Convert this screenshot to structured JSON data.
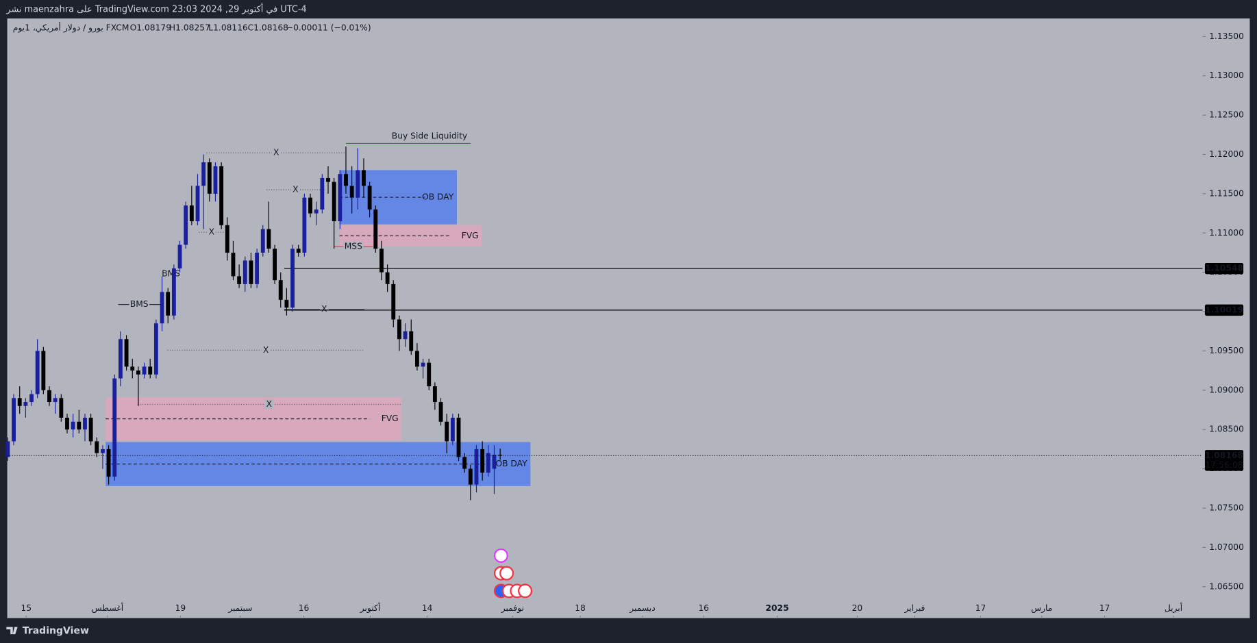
{
  "chart_data": {
    "type": "candlestick",
    "header": "نشر maenzahra على TradingView.com 23:03 2024 ,29 في أكتوبر UTC-4",
    "legend": {
      "symbol": "يورو / دولار أمريكي، 1يوم  FXCM",
      "open": "O1.08179",
      "high": "H1.08257",
      "low": "L1.08116",
      "close": "C1.08168",
      "change": "−0.00011 (−0.01%)"
    },
    "brand": "TradingView",
    "colors": {
      "up": "#1a1f9c",
      "down": "#000000"
    },
    "candles": [
      [
        1.0815,
        1.084,
        1.081,
        1.0835
      ],
      [
        1.0835,
        1.0895,
        1.083,
        1.089
      ],
      [
        1.089,
        1.0905,
        1.087,
        1.088
      ],
      [
        1.088,
        1.089,
        1.0865,
        1.0885
      ],
      [
        1.0885,
        1.09,
        1.088,
        1.0895
      ],
      [
        1.0895,
        1.0965,
        1.089,
        1.095
      ],
      [
        1.095,
        1.0955,
        1.0895,
        1.09
      ],
      [
        1.09,
        1.0905,
        1.088,
        1.0885
      ],
      [
        1.0885,
        1.0895,
        1.087,
        1.089
      ],
      [
        1.089,
        1.0895,
        1.086,
        1.0865
      ],
      [
        1.0865,
        1.087,
        1.0845,
        1.085
      ],
      [
        1.085,
        1.087,
        1.084,
        1.086
      ],
      [
        1.086,
        1.0875,
        1.0845,
        1.085
      ],
      [
        1.085,
        1.087,
        1.0835,
        1.0865
      ],
      [
        1.0865,
        1.087,
        1.083,
        1.0835
      ],
      [
        1.0835,
        1.084,
        1.0815,
        1.082
      ],
      [
        1.082,
        1.083,
        1.08,
        1.0825
      ],
      [
        1.0825,
        1.083,
        1.078,
        1.079
      ],
      [
        1.079,
        1.092,
        1.0785,
        1.0915
      ],
      [
        1.0915,
        1.0975,
        1.0905,
        1.0965
      ],
      [
        1.0965,
        1.097,
        1.0925,
        1.093
      ],
      [
        1.093,
        1.094,
        1.0915,
        1.0925
      ],
      [
        1.0925,
        1.093,
        1.088,
        1.092
      ],
      [
        1.092,
        1.0935,
        1.0915,
        1.093
      ],
      [
        1.093,
        1.094,
        1.0915,
        1.092
      ],
      [
        1.092,
        1.099,
        1.0915,
        1.0985
      ],
      [
        1.0985,
        1.1045,
        1.0975,
        1.1025
      ],
      [
        1.1025,
        1.103,
        1.0985,
        1.0995
      ],
      [
        1.0995,
        1.106,
        1.099,
        1.1055
      ],
      [
        1.1055,
        1.109,
        1.105,
        1.1085
      ],
      [
        1.1085,
        1.114,
        1.108,
        1.1135
      ],
      [
        1.1135,
        1.116,
        1.111,
        1.1115
      ],
      [
        1.1115,
        1.1175,
        1.111,
        1.116
      ],
      [
        1.116,
        1.12,
        1.1105,
        1.119
      ],
      [
        1.119,
        1.1195,
        1.114,
        1.115
      ],
      [
        1.115,
        1.119,
        1.114,
        1.1185
      ],
      [
        1.1185,
        1.119,
        1.1105,
        1.111
      ],
      [
        1.111,
        1.112,
        1.1065,
        1.1075
      ],
      [
        1.1075,
        1.109,
        1.104,
        1.1045
      ],
      [
        1.1045,
        1.106,
        1.103,
        1.1035
      ],
      [
        1.1035,
        1.107,
        1.1025,
        1.1065
      ],
      [
        1.1065,
        1.1075,
        1.103,
        1.1035
      ],
      [
        1.1035,
        1.108,
        1.103,
        1.1075
      ],
      [
        1.1075,
        1.111,
        1.107,
        1.1105
      ],
      [
        1.1105,
        1.114,
        1.1075,
        1.108
      ],
      [
        1.108,
        1.1085,
        1.1035,
        1.104
      ],
      [
        1.104,
        1.105,
        1.1005,
        1.1015
      ],
      [
        1.1015,
        1.103,
        1.0995,
        1.1005
      ],
      [
        1.1005,
        1.1085,
        1.1,
        1.108
      ],
      [
        1.108,
        1.1085,
        1.107,
        1.1075
      ],
      [
        1.1075,
        1.115,
        1.107,
        1.1145
      ],
      [
        1.1145,
        1.115,
        1.112,
        1.1125
      ],
      [
        1.1125,
        1.114,
        1.111,
        1.113
      ],
      [
        1.113,
        1.1175,
        1.1125,
        1.117
      ],
      [
        1.117,
        1.1185,
        1.115,
        1.1165
      ],
      [
        1.1165,
        1.117,
        1.108,
        1.1115
      ],
      [
        1.1115,
        1.118,
        1.1105,
        1.1175
      ],
      [
        1.1175,
        1.121,
        1.115,
        1.116
      ],
      [
        1.116,
        1.1185,
        1.1125,
        1.1145
      ],
      [
        1.1145,
        1.1208,
        1.113,
        1.118
      ],
      [
        1.118,
        1.1195,
        1.1145,
        1.116
      ],
      [
        1.116,
        1.1165,
        1.112,
        1.113
      ],
      [
        1.113,
        1.1135,
        1.1075,
        1.108
      ],
      [
        1.108,
        1.109,
        1.104,
        1.105
      ],
      [
        1.105,
        1.106,
        1.1025,
        1.1035
      ],
      [
        1.1035,
        1.104,
        1.098,
        1.099
      ],
      [
        1.099,
        1.0995,
        1.095,
        1.0965
      ],
      [
        1.0965,
        1.0985,
        1.0955,
        1.0975
      ],
      [
        1.0975,
        1.099,
        1.0945,
        1.095
      ],
      [
        1.095,
        1.096,
        1.0925,
        1.093
      ],
      [
        1.093,
        1.094,
        1.0915,
        1.0935
      ],
      [
        1.0935,
        1.094,
        1.09,
        1.0905
      ],
      [
        1.0905,
        1.091,
        1.0875,
        1.0885
      ],
      [
        1.0885,
        1.089,
        1.0855,
        1.086
      ],
      [
        1.086,
        1.087,
        1.082,
        1.0835
      ],
      [
        1.0835,
        1.087,
        1.083,
        1.0865
      ],
      [
        1.0865,
        1.087,
        1.081,
        1.0815
      ],
      [
        1.0815,
        1.082,
        1.0795,
        1.08
      ],
      [
        1.08,
        1.0805,
        1.076,
        1.078
      ],
      [
        1.078,
        1.083,
        1.077,
        1.0825
      ],
      [
        1.0825,
        1.0835,
        1.0785,
        1.0795
      ],
      [
        1.0795,
        1.083,
        1.079,
        1.082
      ],
      [
        1.08,
        1.083,
        1.0768,
        1.0818
      ],
      [
        1.08179,
        1.08257,
        1.08116,
        1.08168
      ]
    ],
    "xlim": [
      -0.1,
      201.4
    ],
    "xticks": [
      {
        "value": 3.1,
        "label": "15"
      },
      {
        "value": 16.8,
        "label": "أغسطس"
      },
      {
        "value": 29.1,
        "label": "19"
      },
      {
        "value": 39.2,
        "label": "سبتمبر"
      },
      {
        "value": 49.9,
        "label": "16"
      },
      {
        "value": 61.1,
        "label": "أكتوبر"
      },
      {
        "value": 70.7,
        "label": "14"
      },
      {
        "value": 85.1,
        "label": "نوفمبر"
      },
      {
        "value": 96.5,
        "label": "18"
      },
      {
        "value": 107,
        "label": "ديسمبر"
      },
      {
        "value": 117.3,
        "label": "16"
      },
      {
        "value": 129.7,
        "label": "2025"
      },
      {
        "value": 143.2,
        "label": "20"
      },
      {
        "value": 152.9,
        "label": "فبراير"
      },
      {
        "value": 164,
        "label": "17"
      },
      {
        "value": 174.3,
        "label": "مارس"
      },
      {
        "value": 184.9,
        "label": "17"
      },
      {
        "value": 196.5,
        "label": "أبريل"
      }
    ],
    "ylim": [
      1.0611,
      1.1373
    ],
    "yticks": [
      {
        "value": 1.135,
        "label": "1.13500"
      },
      {
        "value": 1.13,
        "label": "1.13000"
      },
      {
        "value": 1.125,
        "label": "1.12500"
      },
      {
        "value": 1.12,
        "label": "1.12000"
      },
      {
        "value": 1.115,
        "label": "1.11500"
      },
      {
        "value": 1.11,
        "label": "1.11000"
      },
      {
        "value": 1.105,
        "label": "1.10500"
      },
      {
        "value": 1.1,
        "label": "1.10000"
      },
      {
        "value": 1.095,
        "label": "1.09500"
      },
      {
        "value": 1.09,
        "label": "1.09000"
      },
      {
        "value": 1.085,
        "label": "1.08500"
      },
      {
        "value": 1.08,
        "label": "1.08000"
      },
      {
        "value": 1.075,
        "label": "1.07500"
      },
      {
        "value": 1.07,
        "label": "1.07000"
      },
      {
        "value": 1.065,
        "label": "1.06500"
      }
    ],
    "price_lines": [
      {
        "value": 1.10548,
        "label": "1.10548",
        "start": 46.6
      },
      {
        "value": 1.10019,
        "label": "1.10019",
        "start": 46.6
      }
    ],
    "last_price": {
      "value": 1.08168,
      "label": "1.08168",
      "countdown": "17:56:08"
    },
    "zones": [
      {
        "label": "OB DAY",
        "color": "#6487e6",
        "top": 1.118,
        "bottom": 1.1111,
        "start": 55.9,
        "end": 75.7
      },
      {
        "label": "FVG",
        "color": "#d8a8bc",
        "top": 1.111,
        "bottom": 1.1083,
        "start": 55.9,
        "end": 79.9
      },
      {
        "label": "FVG",
        "color": "#d8a8bc",
        "top": 1.0891,
        "bottom": 1.0836,
        "start": 16.5,
        "end": 66.4
      },
      {
        "label": "OB DAY",
        "color": "#6487e6",
        "top": 1.0834,
        "bottom": 1.0778,
        "start": 16.5,
        "end": 88.1
      }
    ],
    "markers": [
      {
        "label": "X",
        "price": 1.1202,
        "start": 33.5,
        "end": 57,
        "style": "dotted",
        "color": "#555a66",
        "label_position": "center"
      },
      {
        "label": "X",
        "price": 1.1155,
        "start": 43.6,
        "end": 53.4,
        "style": "dotted",
        "color": "#555a66",
        "label_position": "center"
      },
      {
        "label": "X",
        "price": 1.1101,
        "start": 32.2,
        "end": 36.5,
        "style": "dotted",
        "color": "#555a66",
        "label_position": "center"
      },
      {
        "label": "X",
        "price": 1.1003,
        "start": 46.6,
        "end": 60.1,
        "style": "solid",
        "color": "#555a66",
        "label_position": "center"
      },
      {
        "label": "X",
        "price": 1.0951,
        "start": 26.9,
        "end": 60.1,
        "style": "dotted",
        "color": "#555a66",
        "label_position": "center"
      },
      {
        "label": "X",
        "price": 1.0882,
        "start": 21.9,
        "end": 66.2,
        "style": "dotted",
        "color": "#555a66",
        "label_position": "center"
      },
      {
        "label": "BMS",
        "price": 1.1009,
        "start": 18.6,
        "end": 25.7,
        "style": "solid",
        "color": "#131722",
        "label_position": "center"
      },
      {
        "label": "BMS",
        "price": 1.1048,
        "start": 26.4,
        "end": 28.6,
        "style": "solid",
        "color": "#131722",
        "label_position": "center"
      },
      {
        "label": "MSS",
        "price": 1.1083,
        "start": 55,
        "end": 61.5,
        "style": "solid",
        "color": "#f23645",
        "label_position": "center"
      },
      {
        "label": "Buy Side Liquidity",
        "price": 1.1214,
        "start": 57,
        "end": 78,
        "style": "solid",
        "color": "#2e7d32",
        "label_position": "above-end"
      }
    ]
  }
}
